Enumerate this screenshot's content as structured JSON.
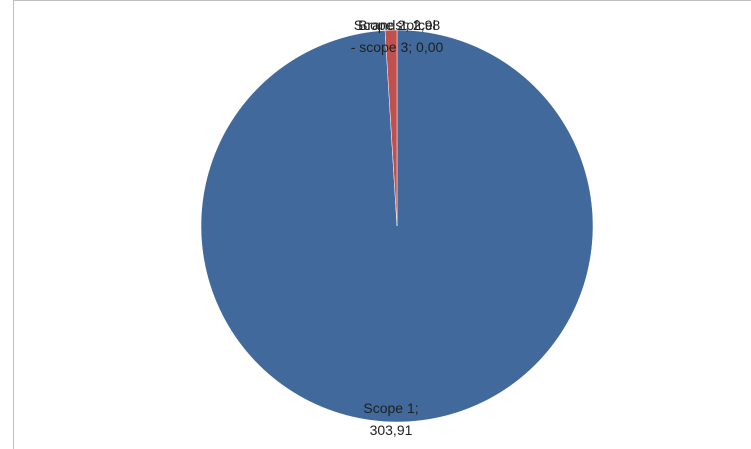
{
  "chart_data": {
    "type": "pie",
    "title": "",
    "slices": [
      {
        "name": "Scope 1",
        "value": 303.91,
        "label_lines": [
          "Scope 1;",
          "303,91"
        ],
        "color": "#41699b"
      },
      {
        "name": "Scope 2",
        "value": 2.98,
        "label_lines": [
          "Scope 2; 2,98"
        ],
        "color": "#c0504d"
      },
      {
        "name": "Brandstofcel - scope 3",
        "value": 0.0,
        "label_lines": [
          "Brandstofcel",
          "- scope 3; 0,00"
        ],
        "color": "#9bbb59"
      }
    ],
    "legend": false
  }
}
